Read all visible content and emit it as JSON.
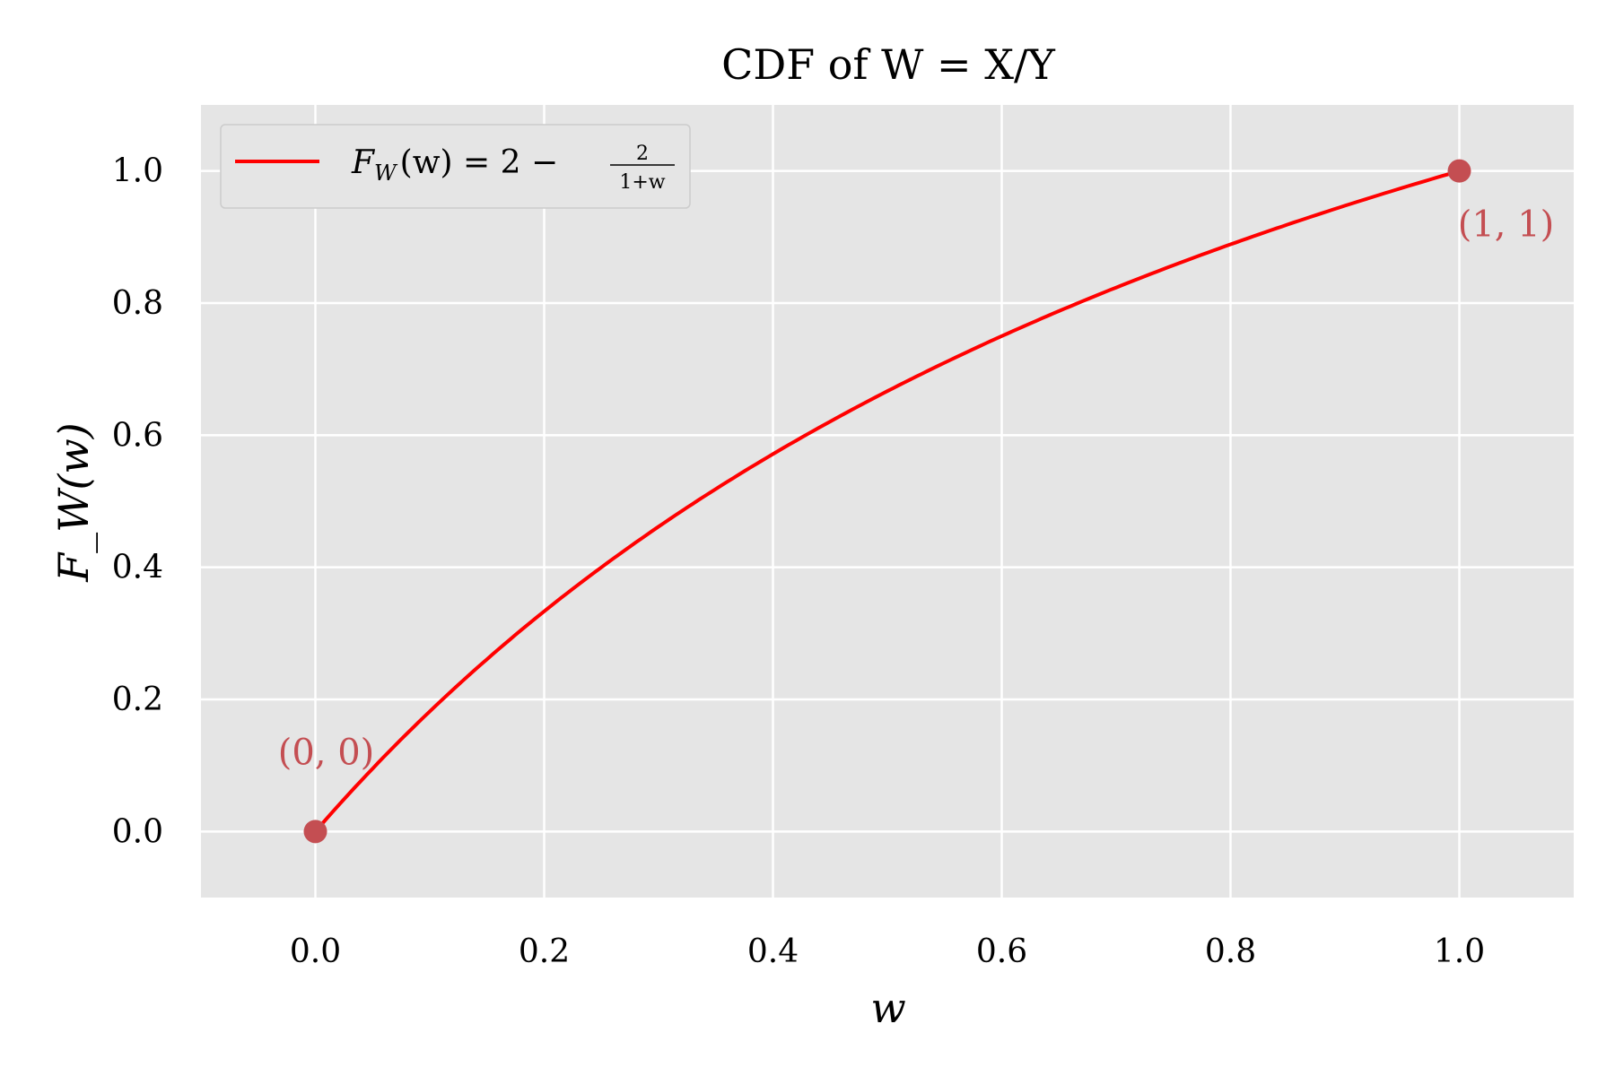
{
  "chart_data": {
    "type": "line",
    "title": "CDF of W = X/Y",
    "xlabel": "w",
    "ylabel": "F_W(w)",
    "xlim": [
      -0.1,
      1.1
    ],
    "ylim": [
      -0.1,
      1.1
    ],
    "xticks": [
      "0.0",
      "0.2",
      "0.4",
      "0.6",
      "0.8",
      "1.0"
    ],
    "yticks": [
      "0.0",
      "0.2",
      "0.4",
      "0.6",
      "0.8",
      "1.0"
    ],
    "grid": true,
    "legend_position": "top-left",
    "series": [
      {
        "name": "F_W(w) = 2 − 2/(1+w)",
        "formula": "2 - 2/(1+w)",
        "x_range": [
          0,
          1
        ],
        "color": "#ff0000"
      }
    ],
    "points": [
      {
        "x": 0,
        "y": 0,
        "label": "(0, 0)",
        "color": "#c44e52"
      },
      {
        "x": 1,
        "y": 1,
        "label": "(1, 1)",
        "color": "#c44e52"
      }
    ],
    "legend": {
      "lhs": "F",
      "sub": "W",
      "mid": "(w) = 2 −",
      "num": "2",
      "den": "1+w"
    }
  }
}
